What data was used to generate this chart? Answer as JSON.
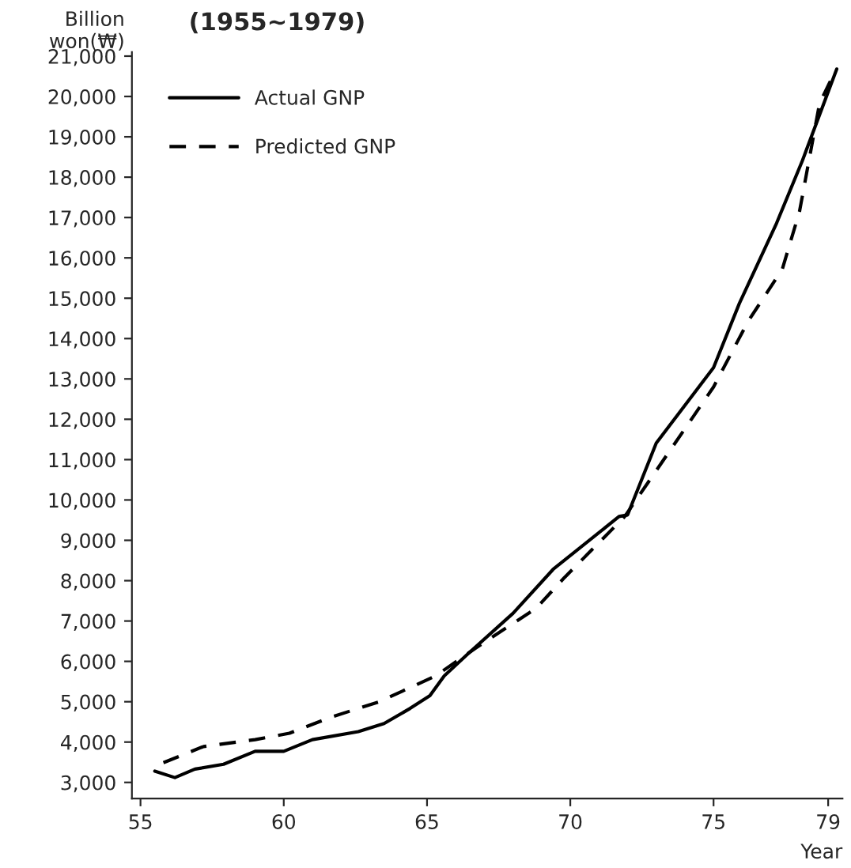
{
  "chart_data": {
    "type": "line",
    "title": "(1955~1979)",
    "ylabel": "Billion\nwon(₩)",
    "xlabel": "Year",
    "series": [
      {
        "name": "Actual GNP",
        "color": "#000000",
        "line_style": "solid",
        "x": [
          55.5,
          56.2,
          56.9,
          57.9,
          59.0,
          60.0,
          61.0,
          62.6,
          63.5,
          64.4,
          65.1,
          65.6,
          66.4,
          68.0,
          69.4,
          71.7,
          72.0,
          73.0,
          75.0,
          75.9,
          77.2,
          78.1,
          79.3
        ],
        "values": [
          3280,
          3120,
          3330,
          3450,
          3770,
          3770,
          4060,
          4260,
          4460,
          4830,
          5150,
          5640,
          6170,
          7190,
          8280,
          9590,
          9630,
          11410,
          13280,
          14870,
          16860,
          18410,
          20680
        ]
      },
      {
        "name": "Predicted GNP",
        "color": "#000000",
        "line_style": "dashed",
        "x": [
          55.8,
          57.2,
          59.0,
          60.2,
          61.7,
          63.3,
          65.3,
          66.7,
          68.0,
          68.8,
          69.8,
          71.9,
          75.0,
          76.2,
          77.4,
          78.0,
          78.7,
          79.2
        ],
        "values": [
          3490,
          3890,
          4060,
          4220,
          4630,
          4990,
          5640,
          6330,
          6940,
          7310,
          8080,
          9590,
          12800,
          14420,
          15720,
          17150,
          19830,
          20560
        ]
      }
    ],
    "xlim": [
      54.7,
      79.5
    ],
    "xticks": [
      55,
      60,
      65,
      70,
      75,
      79
    ],
    "ylim": [
      2600,
      21100
    ],
    "yticks": [
      {
        "value": 3000,
        "label": "3,000"
      },
      {
        "value": 4000,
        "label": "4,000"
      },
      {
        "value": 5000,
        "label": "5,000"
      },
      {
        "value": 6000,
        "label": "6,000"
      },
      {
        "value": 7000,
        "label": "7,000"
      },
      {
        "value": 8000,
        "label": "8,000"
      },
      {
        "value": 9000,
        "label": "9,000"
      },
      {
        "value": 10000,
        "label": "10,000"
      },
      {
        "value": 11000,
        "label": "11,000"
      },
      {
        "value": 12000,
        "label": "12,000"
      },
      {
        "value": 13000,
        "label": "13,000"
      },
      {
        "value": 14000,
        "label": "14,000"
      },
      {
        "value": 15000,
        "label": "15,000"
      },
      {
        "value": 16000,
        "label": "16,000"
      },
      {
        "value": 17000,
        "label": "17,000"
      },
      {
        "value": 18000,
        "label": "18,000"
      },
      {
        "value": 19000,
        "label": "19,000"
      },
      {
        "value": 20000,
        "label": "20,000"
      },
      {
        "value": 21000,
        "label": "21,000"
      }
    ],
    "grid": false,
    "legend": "top left",
    "marker": "none"
  }
}
